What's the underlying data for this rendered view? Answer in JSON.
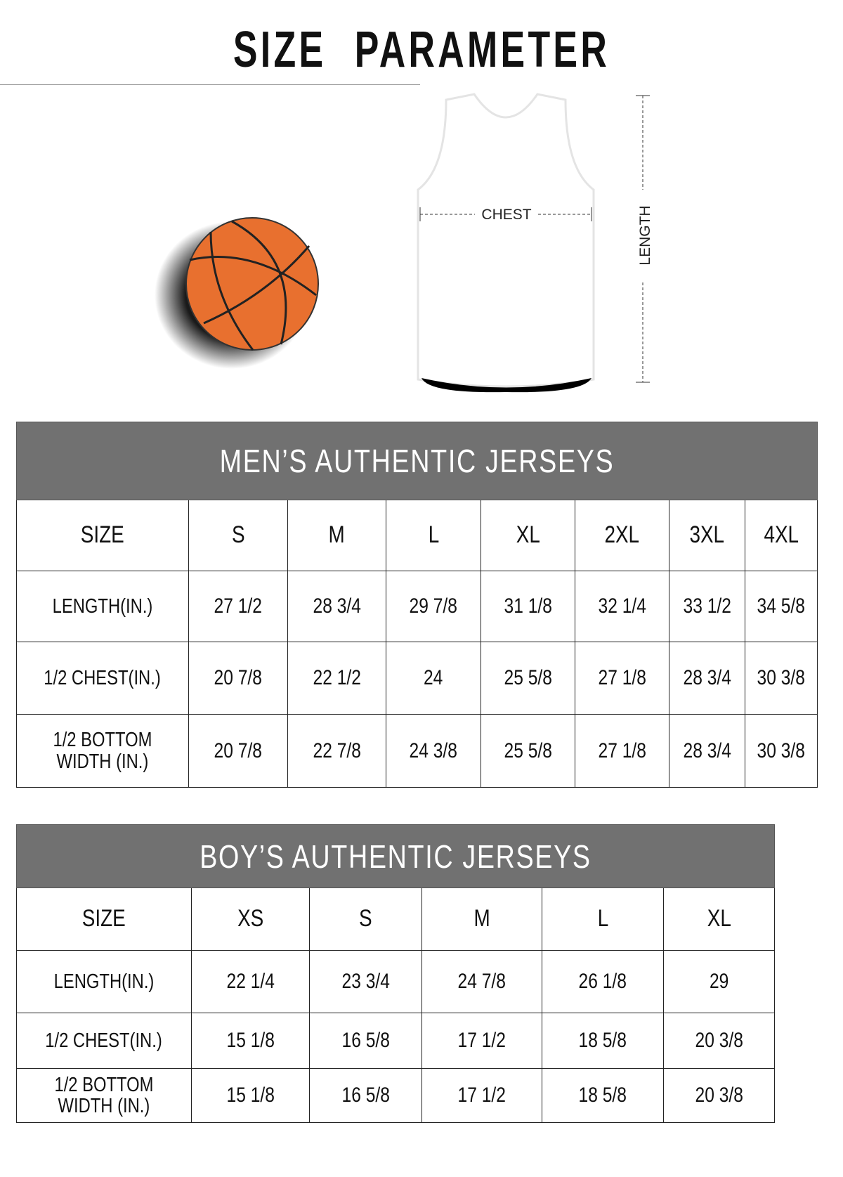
{
  "title": "SIZE PARAMETER",
  "diagram": {
    "chest_label": "CHEST",
    "length_label": "LENGTH",
    "ball_color": "#e8702f",
    "jersey_color": "#ffffff"
  },
  "mens": {
    "title": "MEN’S AUTHENTIC JERSEYS",
    "header": [
      "SIZE",
      "S",
      "M",
      "L",
      "XL",
      "2XL",
      "3XL",
      "4XL"
    ],
    "rows": [
      [
        "LENGTH(IN.)",
        "27  1/2",
        "28  3/4",
        "29  7/8",
        "31  1/8",
        "32  1/4",
        "33  1/2",
        "34  5/8"
      ],
      [
        "1/2 CHEST(IN.)",
        "20  7/8",
        "22  1/2",
        "24",
        "25  5/8",
        "27  1/8",
        "28  3/4",
        "30  3/8"
      ],
      [
        "1/2 BOTTOM\nWIDTH  (IN.)",
        "20  7/8",
        "22  7/8",
        "24  3/8",
        "25  5/8",
        "27  1/8",
        "28  3/4",
        "30  3/8"
      ]
    ]
  },
  "boys": {
    "title": "BOY’S AUTHENTIC JERSEYS",
    "header": [
      "SIZE",
      "XS",
      "S",
      "M",
      "L",
      "XL"
    ],
    "rows": [
      [
        "LENGTH(IN.)",
        "22  1/4",
        "23  3/4",
        "24  7/8",
        "26  1/8",
        "29"
      ],
      [
        "1/2 CHEST(IN.)",
        "15  1/8",
        "16  5/8",
        "17  1/2",
        "18  5/8",
        "20  3/8"
      ],
      [
        "1/2 BOTTOM\nWIDTH  (IN.)",
        "15  1/8",
        "16  5/8",
        "17  1/2",
        "18  5/8",
        "20  3/8"
      ]
    ]
  }
}
